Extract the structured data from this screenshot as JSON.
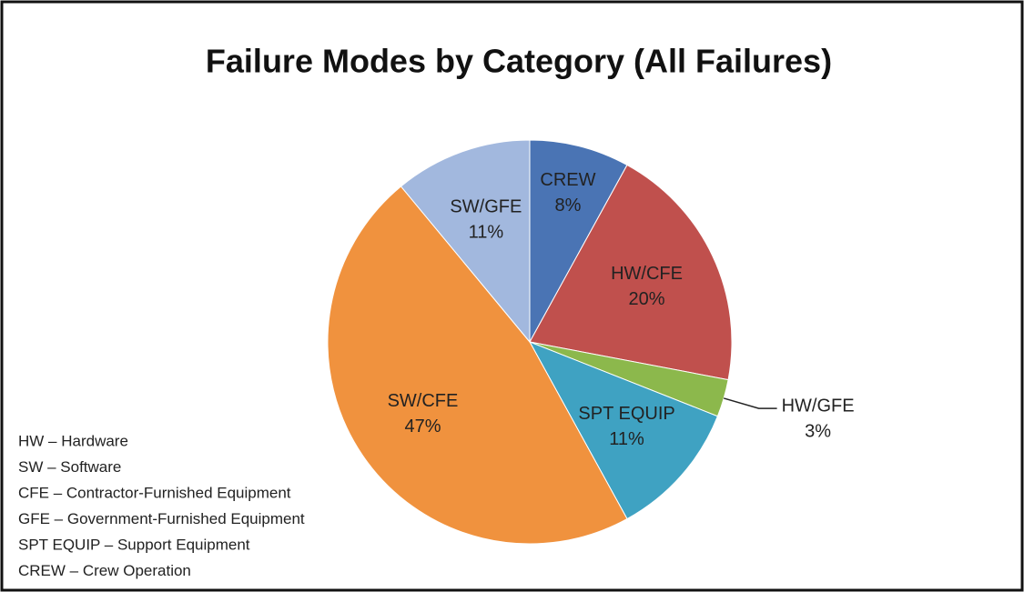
{
  "chart_data": {
    "type": "pie",
    "title": "Failure Modes by Category (All Failures)",
    "categories": [
      "CREW",
      "HW/CFE",
      "HW/GFE",
      "SPT EQUIP",
      "SW/CFE",
      "SW/GFE"
    ],
    "values": [
      8,
      20,
      3,
      11,
      47,
      11
    ],
    "value_labels": [
      "8%",
      "20%",
      "3%",
      "11%",
      "47%",
      "11%"
    ],
    "colors": [
      "#4a74b4",
      "#c0504d",
      "#8cb84c",
      "#3fa2c2",
      "#f0923e",
      "#a2b8de"
    ],
    "notes": [
      "HW – Hardware",
      "SW – Software",
      "CFE – Contractor-Furnished Equipment",
      "GFE – Government-Furnished Equipment",
      "SPT EQUIP – Support Equipment",
      "CREW – Crew Operation"
    ]
  }
}
